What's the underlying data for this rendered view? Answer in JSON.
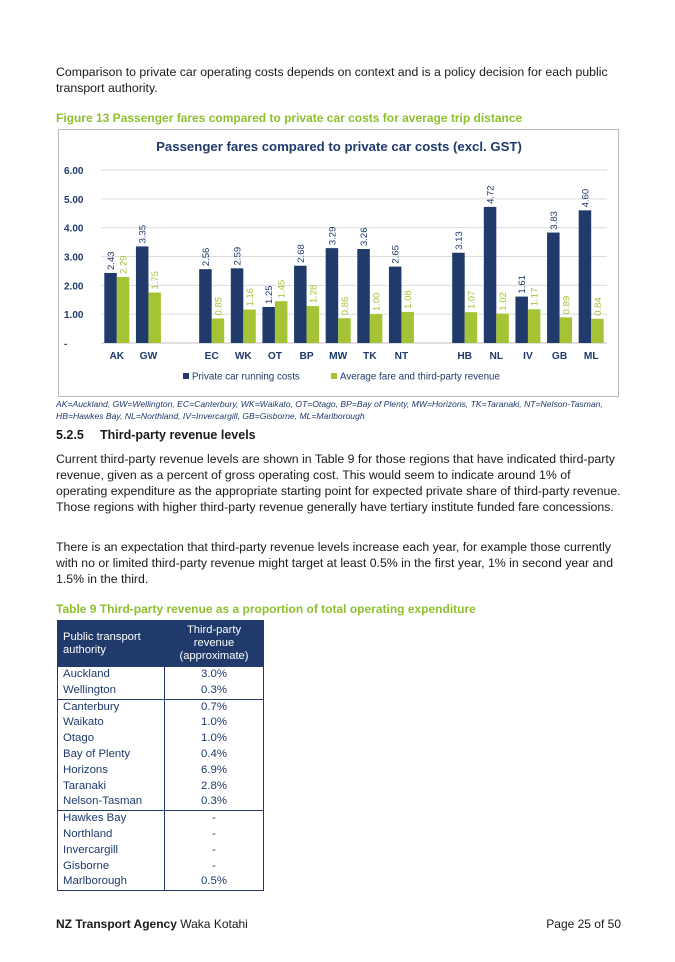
{
  "intro_text": "Comparison to private car operating costs depends on context and is a policy decision for each public transport authority.",
  "figure_caption": "Figure 13 Passenger fares compared to private car costs for average trip distance",
  "chart_data": {
    "type": "bar",
    "title": "Passenger fares compared to private car costs (excl. GST)",
    "categories": [
      "AK",
      "GW",
      "",
      "EC",
      "WK",
      "OT",
      "BP",
      "MW",
      "TK",
      "NT",
      "",
      "HB",
      "NL",
      "IV",
      "GB",
      "ML"
    ],
    "series": [
      {
        "name": "Private car running costs",
        "color": "#1f3a6b",
        "values": [
          2.43,
          3.35,
          null,
          2.56,
          2.59,
          1.25,
          2.68,
          3.29,
          3.26,
          2.65,
          null,
          3.13,
          4.72,
          1.61,
          3.83,
          4.6
        ],
        "labels": [
          "2.43",
          "3.35",
          "",
          "2.56",
          "2.59",
          "1.25",
          "2.68",
          "3.29",
          "3.26",
          "2.65",
          "",
          "3.13",
          "4.72",
          "1.61",
          "3.83",
          "4.60"
        ]
      },
      {
        "name": "Average fare and third-party revenue",
        "color": "#a4c436",
        "values": [
          2.29,
          1.75,
          null,
          0.85,
          1.16,
          1.45,
          1.28,
          0.86,
          1.0,
          1.08,
          null,
          1.07,
          1.02,
          1.17,
          0.89,
          0.84
        ],
        "labels": [
          "2.29",
          "1.75",
          "",
          "0.85",
          "1.16",
          "1.45",
          "1.28",
          "0.86",
          "1.00",
          "1.08",
          "",
          "1.07",
          "1.02",
          "1.17",
          "0.89",
          "0.84"
        ]
      }
    ],
    "ylim": [
      0,
      6
    ],
    "yticks": [
      {
        "value": 0,
        "label": "-"
      },
      {
        "value": 1,
        "label": "1.00"
      },
      {
        "value": 2,
        "label": "2.00"
      },
      {
        "value": 3,
        "label": "3.00"
      },
      {
        "value": 4,
        "label": "4.00"
      },
      {
        "value": 5,
        "label": "5.00"
      },
      {
        "value": 6,
        "label": "6.00"
      }
    ],
    "xlabel": "",
    "ylabel": "",
    "legend_position": "bottom",
    "grid": true
  },
  "abbreviations": "AK=Auckland, GW=Wellington, EC=Canterbury, WK=Waikato, OT=Otago, BP=Bay of Plenty, MW=Horizons, TK=Taranaki, NT=Nelson-Tasman, HB=Hawkes Bay, NL=Northland, IV=Invercargill, GB=Gisborne, ML=Marlborough",
  "section": {
    "number": "5.2.5",
    "title": "Third-party revenue levels"
  },
  "paragraph1": "Current third-party revenue levels are shown in Table 9 for those regions that have indicated third-party revenue, given as a percent of gross operating cost. This would seem to indicate around 1% of operating expenditure as the appropriate starting point for expected private share of third-party revenue. Those regions with higher third-party revenue generally have tertiary institute funded fare concessions.",
  "paragraph2": "There is an expectation that third-party revenue levels increase each year, for example those currently with no or limited third-party revenue might target at least 0.5% in the first year, 1% in second year and 1.5% in the third.",
  "table_caption": "Table 9 Third-party revenue as a proportion of total operating expenditure",
  "table": {
    "headers": [
      "Public transport authority",
      "Third-party revenue (approximate)"
    ],
    "groups": [
      [
        [
          "Auckland",
          "3.0%"
        ],
        [
          "Wellington",
          "0.3%"
        ]
      ],
      [
        [
          "Canterbury",
          "0.7%"
        ],
        [
          "Waikato",
          "1.0%"
        ],
        [
          "Otago",
          "1.0%"
        ],
        [
          "Bay of Plenty",
          "0.4%"
        ],
        [
          "Horizons",
          "6.9%"
        ],
        [
          "Taranaki",
          "2.8%"
        ],
        [
          "Nelson-Tasman",
          "0.3%"
        ]
      ],
      [
        [
          "Hawkes Bay",
          "-"
        ],
        [
          "Northland",
          "-"
        ],
        [
          "Invercargill",
          "-"
        ],
        [
          "Gisborne",
          "-"
        ],
        [
          "Marlborough",
          "0.5%"
        ]
      ]
    ]
  },
  "footer": {
    "org_bold": "NZ Transport Agency",
    "org_rest": " Waka Kotahi",
    "page": "Page 25 of 50"
  }
}
